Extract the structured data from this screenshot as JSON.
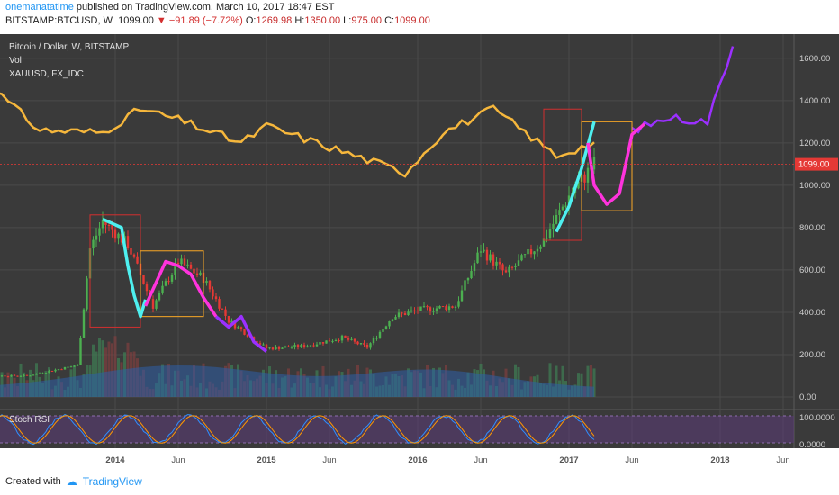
{
  "header": {
    "author": "onemanatatime",
    "published_text": "published on TradingView.com, March 10, 2017 18:47 EST",
    "symbol": "BITSTAMP:BTCUSD, W",
    "last_price": "1099.00",
    "change": "▼ −91.89 (−7.72%)",
    "o_label": "O:",
    "o_value": "1269.98",
    "h_label": "H:",
    "h_value": "1350.00",
    "l_label": "L:",
    "l_value": "975.00",
    "c_label": "C:",
    "c_value": "1099.00"
  },
  "legend": {
    "main": "Bitcoin / Dollar, W, BITSTAMP",
    "vol": "Vol",
    "overlay": "XAUUSD, FX_IDC",
    "stoch": "Stoch RSI"
  },
  "footer": {
    "created_with": "Created with",
    "brand": "TradingView"
  },
  "colors": {
    "background": "#3a3a3a",
    "gold": "#f6b73c",
    "cyan": "#4ef0f0",
    "magenta": "#ff33dd",
    "purple": "#9b30ff",
    "up": "#4caf50",
    "down": "#e53935",
    "price_line": "#e53935"
  },
  "chart_data": {
    "type": "candlestick",
    "price_axis": {
      "ticks": [
        "1600.00",
        "1400.00",
        "1200.00",
        "1000.00",
        "800.00",
        "600.00",
        "400.00",
        "200.00",
        "0.00"
      ],
      "ylim": [
        0,
        1680
      ],
      "current_price_label": "1099.00",
      "current_price": 1099
    },
    "stoch_axis": {
      "ticks": [
        "100.0000",
        "0.0000"
      ],
      "ylim": [
        0,
        100
      ]
    },
    "x_ticks": [
      "2014",
      "Jun",
      "2015",
      "Jun",
      "2016",
      "Jun",
      "2017",
      "Jun",
      "2018",
      "Jun"
    ],
    "x_tick_dates": [
      "2014-01",
      "2014-06",
      "2015-01",
      "2015-06",
      "2016-01",
      "2016-06",
      "2017-01",
      "2017-06",
      "2018-01",
      "2018-06"
    ],
    "xlim": [
      "2013-01",
      "2018-06"
    ],
    "btc_price_approx": [
      {
        "date": "2013-01",
        "value": 100
      },
      {
        "date": "2013-06",
        "value": 100
      },
      {
        "date": "2013-10",
        "value": 150
      },
      {
        "date": "2013-11",
        "value": 700
      },
      {
        "date": "2013-12",
        "value": 830
      },
      {
        "date": "2014-02",
        "value": 720
      },
      {
        "date": "2014-04",
        "value": 430
      },
      {
        "date": "2014-06",
        "value": 640
      },
      {
        "date": "2014-08",
        "value": 560
      },
      {
        "date": "2014-10",
        "value": 360
      },
      {
        "date": "2015-01",
        "value": 230
      },
      {
        "date": "2015-04",
        "value": 240
      },
      {
        "date": "2015-07",
        "value": 280
      },
      {
        "date": "2015-09",
        "value": 235
      },
      {
        "date": "2015-11",
        "value": 380
      },
      {
        "date": "2016-01",
        "value": 410
      },
      {
        "date": "2016-04",
        "value": 430
      },
      {
        "date": "2016-06",
        "value": 700
      },
      {
        "date": "2016-08",
        "value": 580
      },
      {
        "date": "2016-11",
        "value": 740
      },
      {
        "date": "2017-01",
        "value": 950
      },
      {
        "date": "2017-03",
        "value": 1099
      }
    ],
    "xauusd_overlay_approx": [
      {
        "date": "2013-01",
        "value": 1640
      },
      {
        "date": "2013-04",
        "value": 1420
      },
      {
        "date": "2013-07",
        "value": 1260
      },
      {
        "date": "2013-12",
        "value": 1250
      },
      {
        "date": "2014-03",
        "value": 1360
      },
      {
        "date": "2014-06",
        "value": 1310
      },
      {
        "date": "2014-11",
        "value": 1200
      },
      {
        "date": "2015-01",
        "value": 1280
      },
      {
        "date": "2015-06",
        "value": 1180
      },
      {
        "date": "2015-12",
        "value": 1060
      },
      {
        "date": "2016-03",
        "value": 1250
      },
      {
        "date": "2016-07",
        "value": 1360
      },
      {
        "date": "2016-12",
        "value": 1140
      },
      {
        "date": "2017-03",
        "value": 1200
      },
      {
        "date": "2017-06",
        "value": 1260
      },
      {
        "date": "2017-09",
        "value": 1320
      },
      {
        "date": "2017-12",
        "value": 1300
      },
      {
        "date": "2018-02",
        "value": 1660
      }
    ],
    "annotations": [
      {
        "kind": "box",
        "color": "#d32f2f",
        "from": "2013-11",
        "to": "2014-03",
        "low": 330,
        "high": 860
      },
      {
        "kind": "box",
        "color": "#f9a825",
        "from": "2014-03",
        "to": "2014-08",
        "low": 380,
        "high": 690
      },
      {
        "kind": "box",
        "color": "#d32f2f",
        "from": "2016-11",
        "to": "2017-02",
        "low": 740,
        "high": 1360
      },
      {
        "kind": "box",
        "color": "#f9a825",
        "from": "2017-02",
        "to": "2017-06",
        "low": 880,
        "high": 1300
      }
    ]
  }
}
